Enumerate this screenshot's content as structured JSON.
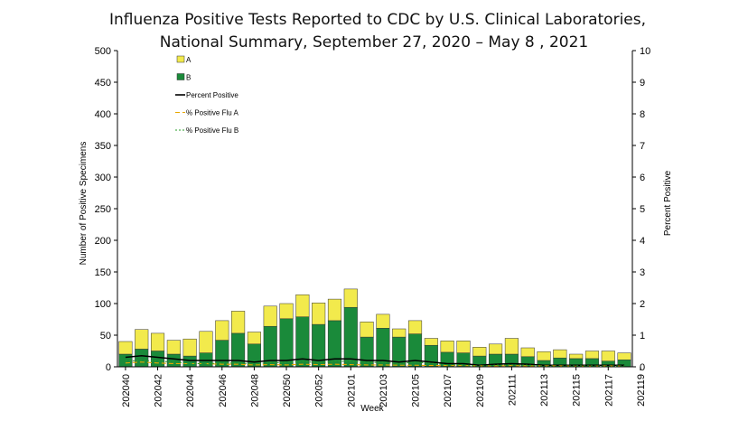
{
  "chart_data": {
    "type": "bar",
    "title": "Influenza Positive Tests Reported to CDC by U.S. Clinical Laboratories,",
    "subtitle": "National Summary, September 27, 2020 – May 8 , 2021",
    "xlabel": "Week",
    "ylabel": "Number of Positive Specimens",
    "y2label": "Percent Positive",
    "ylim": [
      0,
      500
    ],
    "y2lim": [
      0,
      10
    ],
    "yticks": [
      "0",
      "50",
      "100",
      "150",
      "200",
      "250",
      "300",
      "350",
      "400",
      "450",
      "500"
    ],
    "y2ticks": [
      "0",
      "1",
      "2",
      "3",
      "4",
      "5",
      "6",
      "7",
      "8",
      "9",
      "10"
    ],
    "xtick_labels": [
      "202040",
      "202042",
      "202044",
      "202046",
      "202048",
      "202050",
      "202052",
      "202101",
      "202103",
      "202105",
      "202107",
      "202109",
      "202111",
      "202113",
      "202115",
      "202117",
      "202119"
    ],
    "categories": [
      "202040",
      "202041",
      "202042",
      "202043",
      "202044",
      "202045",
      "202046",
      "202047",
      "202048",
      "202049",
      "202050",
      "202051",
      "202052",
      "202053",
      "202101",
      "202102",
      "202103",
      "202104",
      "202105",
      "202106",
      "202107",
      "202108",
      "202109",
      "202110",
      "202111",
      "202112",
      "202113",
      "202114",
      "202115",
      "202116",
      "202117",
      "202118"
    ],
    "stacked": true,
    "series": [
      {
        "name": "B",
        "kind": "bar",
        "color": "#1a8a3a",
        "values": [
          20,
          28,
          25,
          20,
          17,
          22,
          42,
          53,
          36,
          64,
          76,
          79,
          67,
          73,
          94,
          47,
          61,
          47,
          52,
          34,
          23,
          22,
          17,
          20,
          20,
          16,
          10,
          14,
          13,
          13,
          9,
          11
        ]
      },
      {
        "name": "A",
        "kind": "bar",
        "color": "#f2ea4c",
        "values": [
          20,
          31,
          28,
          22,
          27,
          34,
          31,
          35,
          19,
          32,
          24,
          35,
          34,
          34,
          29,
          24,
          22,
          13,
          21,
          11,
          18,
          19,
          14,
          16,
          25,
          14,
          14,
          13,
          7,
          12,
          16,
          11
        ]
      },
      {
        "name": "Percent Positive",
        "kind": "line",
        "axis": "y2",
        "color": "#000000",
        "values": [
          0.3,
          0.35,
          0.3,
          0.25,
          0.2,
          0.2,
          0.2,
          0.2,
          0.15,
          0.2,
          0.2,
          0.25,
          0.2,
          0.25,
          0.25,
          0.2,
          0.2,
          0.15,
          0.2,
          0.15,
          0.1,
          0.1,
          0.05,
          0.08,
          0.1,
          0.08,
          0.05,
          0.05,
          0.05,
          0.05,
          0.05,
          0.05
        ]
      },
      {
        "name": "% Positive Flu A",
        "kind": "line",
        "axis": "y2",
        "color": "#e8a800",
        "values": [
          0.12,
          0.15,
          0.12,
          0.1,
          0.1,
          0.1,
          0.08,
          0.08,
          0.06,
          0.07,
          0.06,
          0.08,
          0.07,
          0.08,
          0.07,
          0.06,
          0.06,
          0.05,
          0.05,
          0.04,
          0.04,
          0.04,
          0.03,
          0.03,
          0.04,
          0.03,
          0.03,
          0.03,
          0.02,
          0.02,
          0.03,
          0.02
        ]
      },
      {
        "name": "% Positive Flu B",
        "kind": "line",
        "axis": "y2",
        "color": "#2a9d2a",
        "values": [
          0.18,
          0.2,
          0.18,
          0.15,
          0.1,
          0.1,
          0.12,
          0.12,
          0.09,
          0.13,
          0.14,
          0.17,
          0.13,
          0.17,
          0.18,
          0.14,
          0.14,
          0.1,
          0.15,
          0.11,
          0.06,
          0.06,
          0.02,
          0.05,
          0.06,
          0.05,
          0.02,
          0.02,
          0.03,
          0.03,
          0.02,
          0.03
        ]
      }
    ],
    "legend": [
      "A",
      "B",
      "Percent Positive",
      "% Positive Flu A",
      "% Positive Flu B"
    ],
    "legend_position": "top-left",
    "grid": false
  }
}
